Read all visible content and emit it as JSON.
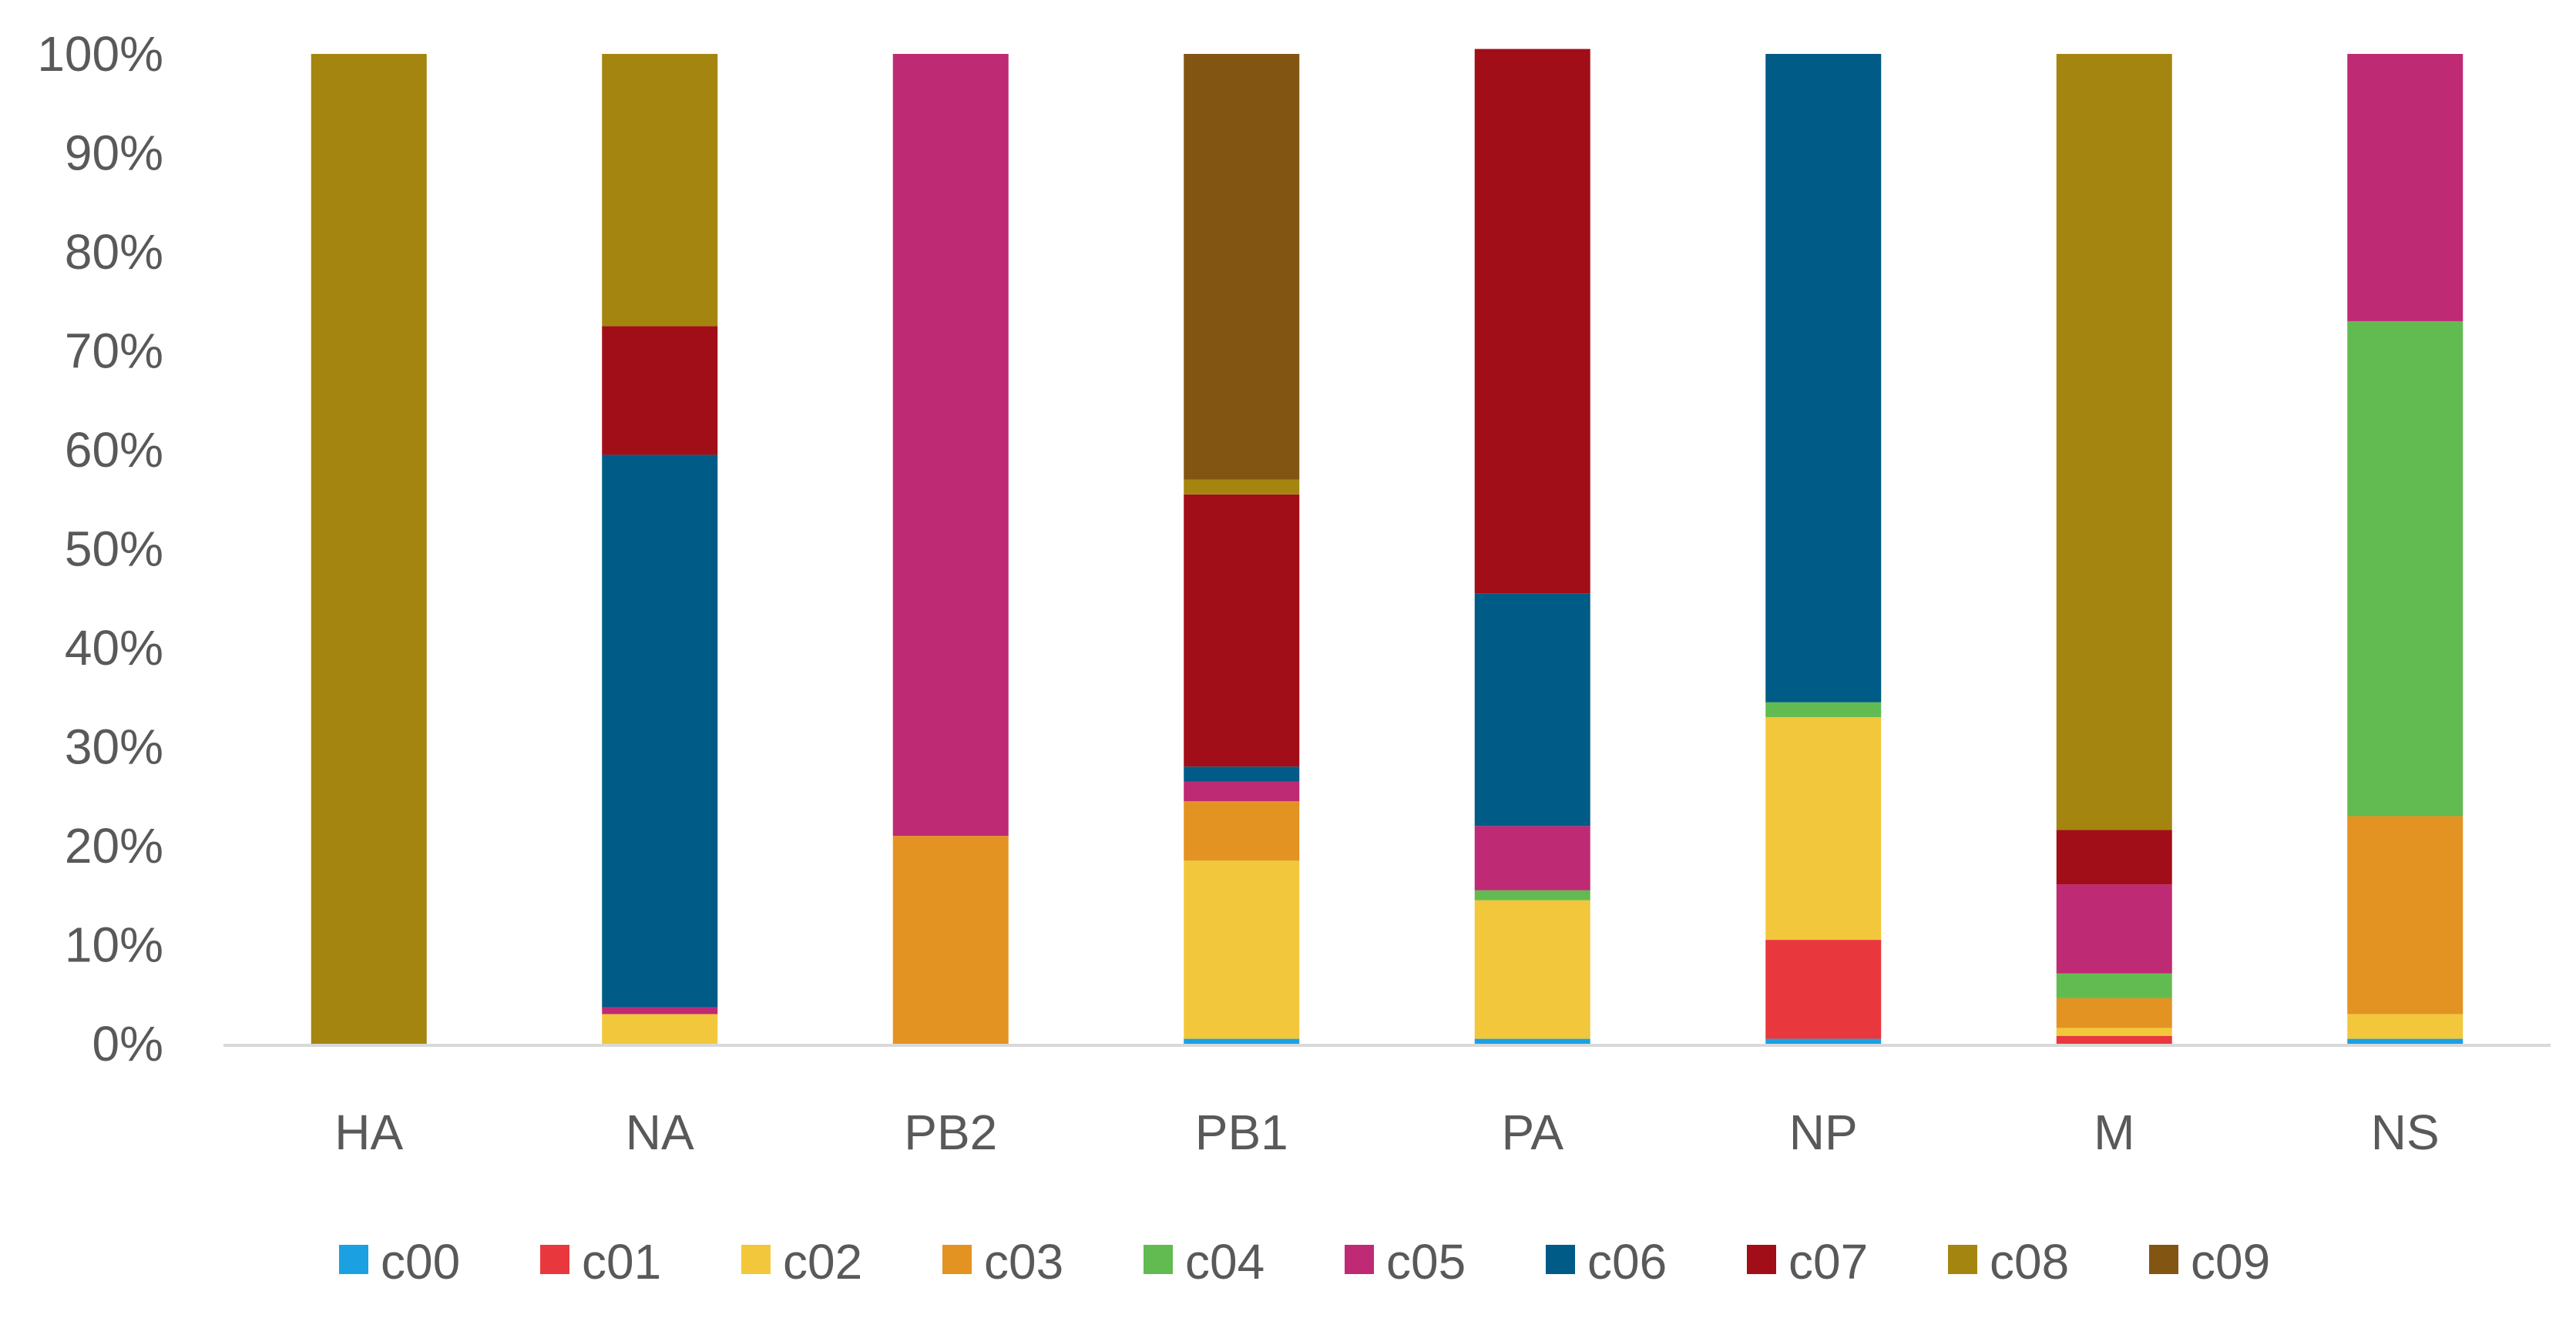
{
  "chart_data": {
    "type": "bar",
    "stacked": true,
    "percent": true,
    "title": "",
    "xlabel": "",
    "ylabel": "",
    "ylim": [
      0,
      100
    ],
    "yticks": [
      "0%",
      "10%",
      "20%",
      "30%",
      "40%",
      "50%",
      "60%",
      "70%",
      "80%",
      "90%",
      "100%"
    ],
    "grid": false,
    "legend_position": "bottom",
    "categories": [
      "HA",
      "NA",
      "PB2",
      "PB1",
      "PA",
      "NP",
      "M",
      "NS"
    ],
    "series": [
      {
        "name": "c00",
        "color": "#1ba1e2",
        "values": [
          0,
          0,
          0,
          0.5,
          0.5,
          0.5,
          0,
          0.5
        ]
      },
      {
        "name": "c01",
        "color": "#e8383d",
        "values": [
          0,
          0,
          0,
          0,
          0,
          10,
          0.8,
          0
        ]
      },
      {
        "name": "c02",
        "color": "#f2c73c",
        "values": [
          0,
          3,
          0,
          18,
          14,
          22.5,
          0.8,
          2.5
        ]
      },
      {
        "name": "c03",
        "color": "#e39322",
        "values": [
          0,
          0,
          21,
          6,
          0,
          0,
          3,
          20
        ]
      },
      {
        "name": "c04",
        "color": "#62bb51",
        "values": [
          0,
          0,
          0,
          0,
          1,
          1.5,
          2.5,
          50
        ]
      },
      {
        "name": "c05",
        "color": "#be2a73",
        "values": [
          0,
          0.7,
          79,
          2,
          6.5,
          0,
          9,
          27
        ]
      },
      {
        "name": "c06",
        "color": "#005b86",
        "values": [
          0,
          55.8,
          0,
          1.5,
          23.5,
          65.5,
          0,
          0
        ]
      },
      {
        "name": "c07",
        "color": "#a20e18",
        "values": [
          0,
          13,
          0,
          27.5,
          55,
          0,
          5.5,
          0
        ]
      },
      {
        "name": "c08",
        "color": "#a4850f",
        "values": [
          100,
          27.5,
          0,
          1.5,
          0,
          0,
          78.4,
          0
        ]
      },
      {
        "name": "c09",
        "color": "#835512",
        "values": [
          0,
          0,
          0,
          43,
          0,
          0,
          0,
          0
        ]
      }
    ]
  }
}
